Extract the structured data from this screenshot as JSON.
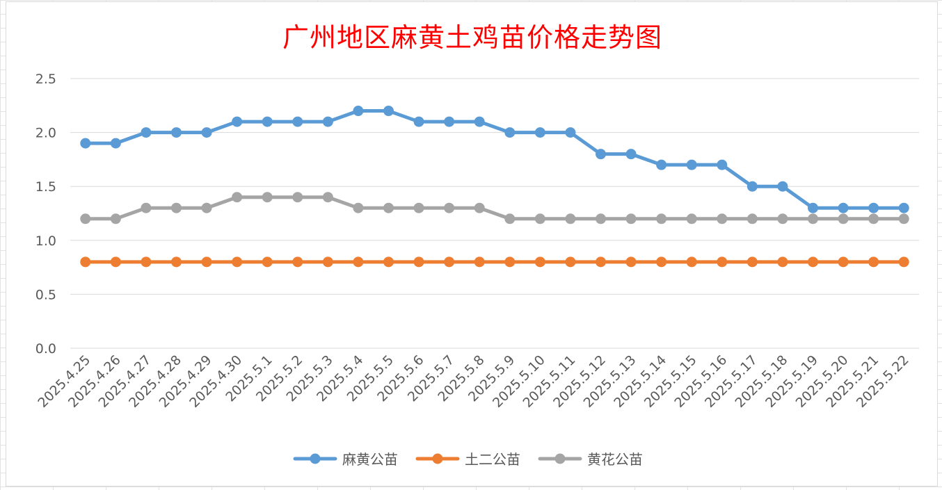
{
  "chart_data": {
    "type": "line",
    "title": "广州地区麻黄土鸡苗价格走势图",
    "xlabel": "",
    "ylabel": "",
    "ylim": [
      0,
      2.5
    ],
    "yticks": [
      "0.0",
      "0.5",
      "1.0",
      "1.5",
      "2.0",
      "2.5"
    ],
    "grid": true,
    "legend_position": "bottom",
    "categories": [
      "2025.4.25",
      "2025.4.26",
      "2025.4.27",
      "2025.4.28",
      "2025.4.29",
      "2025.4.30",
      "2025.5.1",
      "2025.5.2",
      "2025.5.3",
      "2025.5.4",
      "2025.5.5",
      "2025.5.6",
      "2025.5.7",
      "2025.5.8",
      "2025.5.9",
      "2025.5.10",
      "2025.5.11",
      "2025.5.12",
      "2025.5.13",
      "2025.5.14",
      "2025.5.15",
      "2025.5.16",
      "2025.5.17",
      "2025.5.18",
      "2025.5.19",
      "2025.5.20",
      "2025.5.21",
      "2025.5.22"
    ],
    "series": [
      {
        "name": "麻黄公苗",
        "color": "#5b9bd5",
        "values": [
          1.9,
          1.9,
          2.0,
          2.0,
          2.0,
          2.1,
          2.1,
          2.1,
          2.1,
          2.2,
          2.2,
          2.1,
          2.1,
          2.1,
          2.0,
          2.0,
          2.0,
          1.8,
          1.8,
          1.7,
          1.7,
          1.7,
          1.5,
          1.5,
          1.3,
          1.3,
          1.3,
          1.3
        ]
      },
      {
        "name": "土二公苗",
        "color": "#ed7d31",
        "values": [
          0.8,
          0.8,
          0.8,
          0.8,
          0.8,
          0.8,
          0.8,
          0.8,
          0.8,
          0.8,
          0.8,
          0.8,
          0.8,
          0.8,
          0.8,
          0.8,
          0.8,
          0.8,
          0.8,
          0.8,
          0.8,
          0.8,
          0.8,
          0.8,
          0.8,
          0.8,
          0.8,
          0.8
        ]
      },
      {
        "name": "黄花公苗",
        "color": "#a5a5a5",
        "values": [
          1.2,
          1.2,
          1.3,
          1.3,
          1.3,
          1.4,
          1.4,
          1.4,
          1.4,
          1.3,
          1.3,
          1.3,
          1.3,
          1.3,
          1.2,
          1.2,
          1.2,
          1.2,
          1.2,
          1.2,
          1.2,
          1.2,
          1.2,
          1.2,
          1.2,
          1.2,
          1.2,
          1.2
        ]
      }
    ]
  }
}
